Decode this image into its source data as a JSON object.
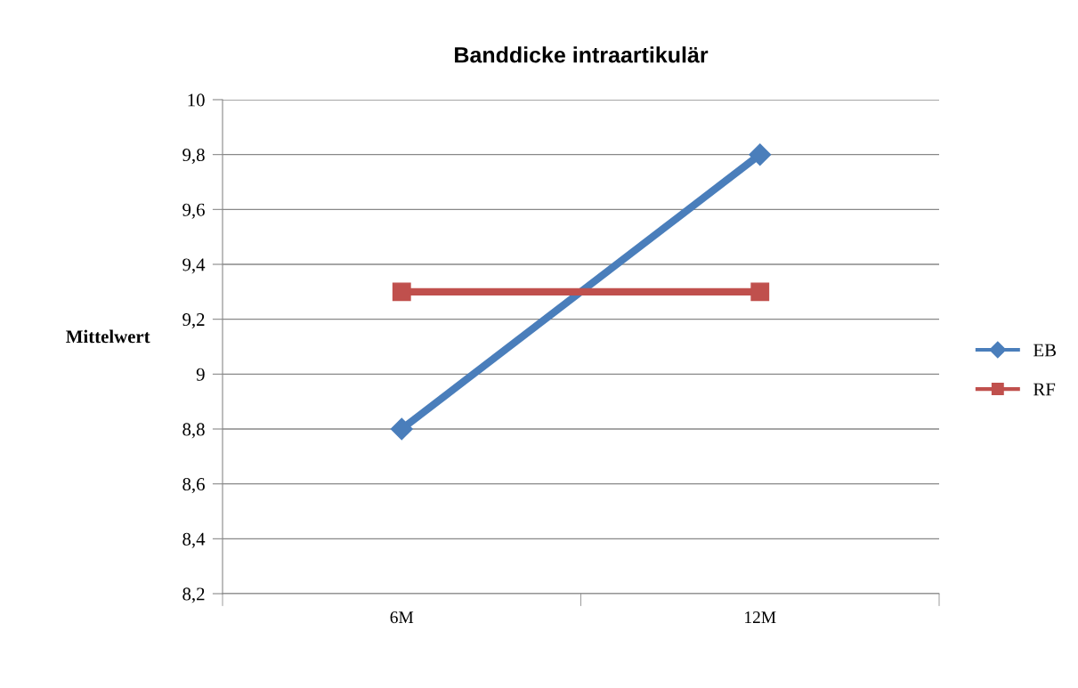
{
  "chart_data": {
    "type": "line",
    "title": "Banddicke intraartikulär",
    "ylabel": "Mittelwert",
    "categories": [
      "6M",
      "12M"
    ],
    "series": [
      {
        "name": "EB",
        "color": "#4a7ebb",
        "values": [
          8.8,
          9.8
        ],
        "marker": "diamond"
      },
      {
        "name": "RF",
        "color": "#c0504d",
        "values": [
          9.3,
          9.3
        ],
        "marker": "square"
      }
    ],
    "ylim": [
      8.2,
      10
    ],
    "yticks": [
      {
        "value": 8.2,
        "label": "8,2"
      },
      {
        "value": 8.4,
        "label": "8,4"
      },
      {
        "value": 8.6,
        "label": "8,6"
      },
      {
        "value": 8.8,
        "label": "8,8"
      },
      9,
      {
        "value": 9.2,
        "label": "9,2"
      },
      {
        "value": 9.4,
        "label": "9,4"
      },
      {
        "value": 9.6,
        "label": "9,6"
      },
      {
        "value": 9.8,
        "label": "9,8"
      },
      10
    ],
    "grid": "y",
    "legend": "right",
    "line_style": "solid"
  }
}
